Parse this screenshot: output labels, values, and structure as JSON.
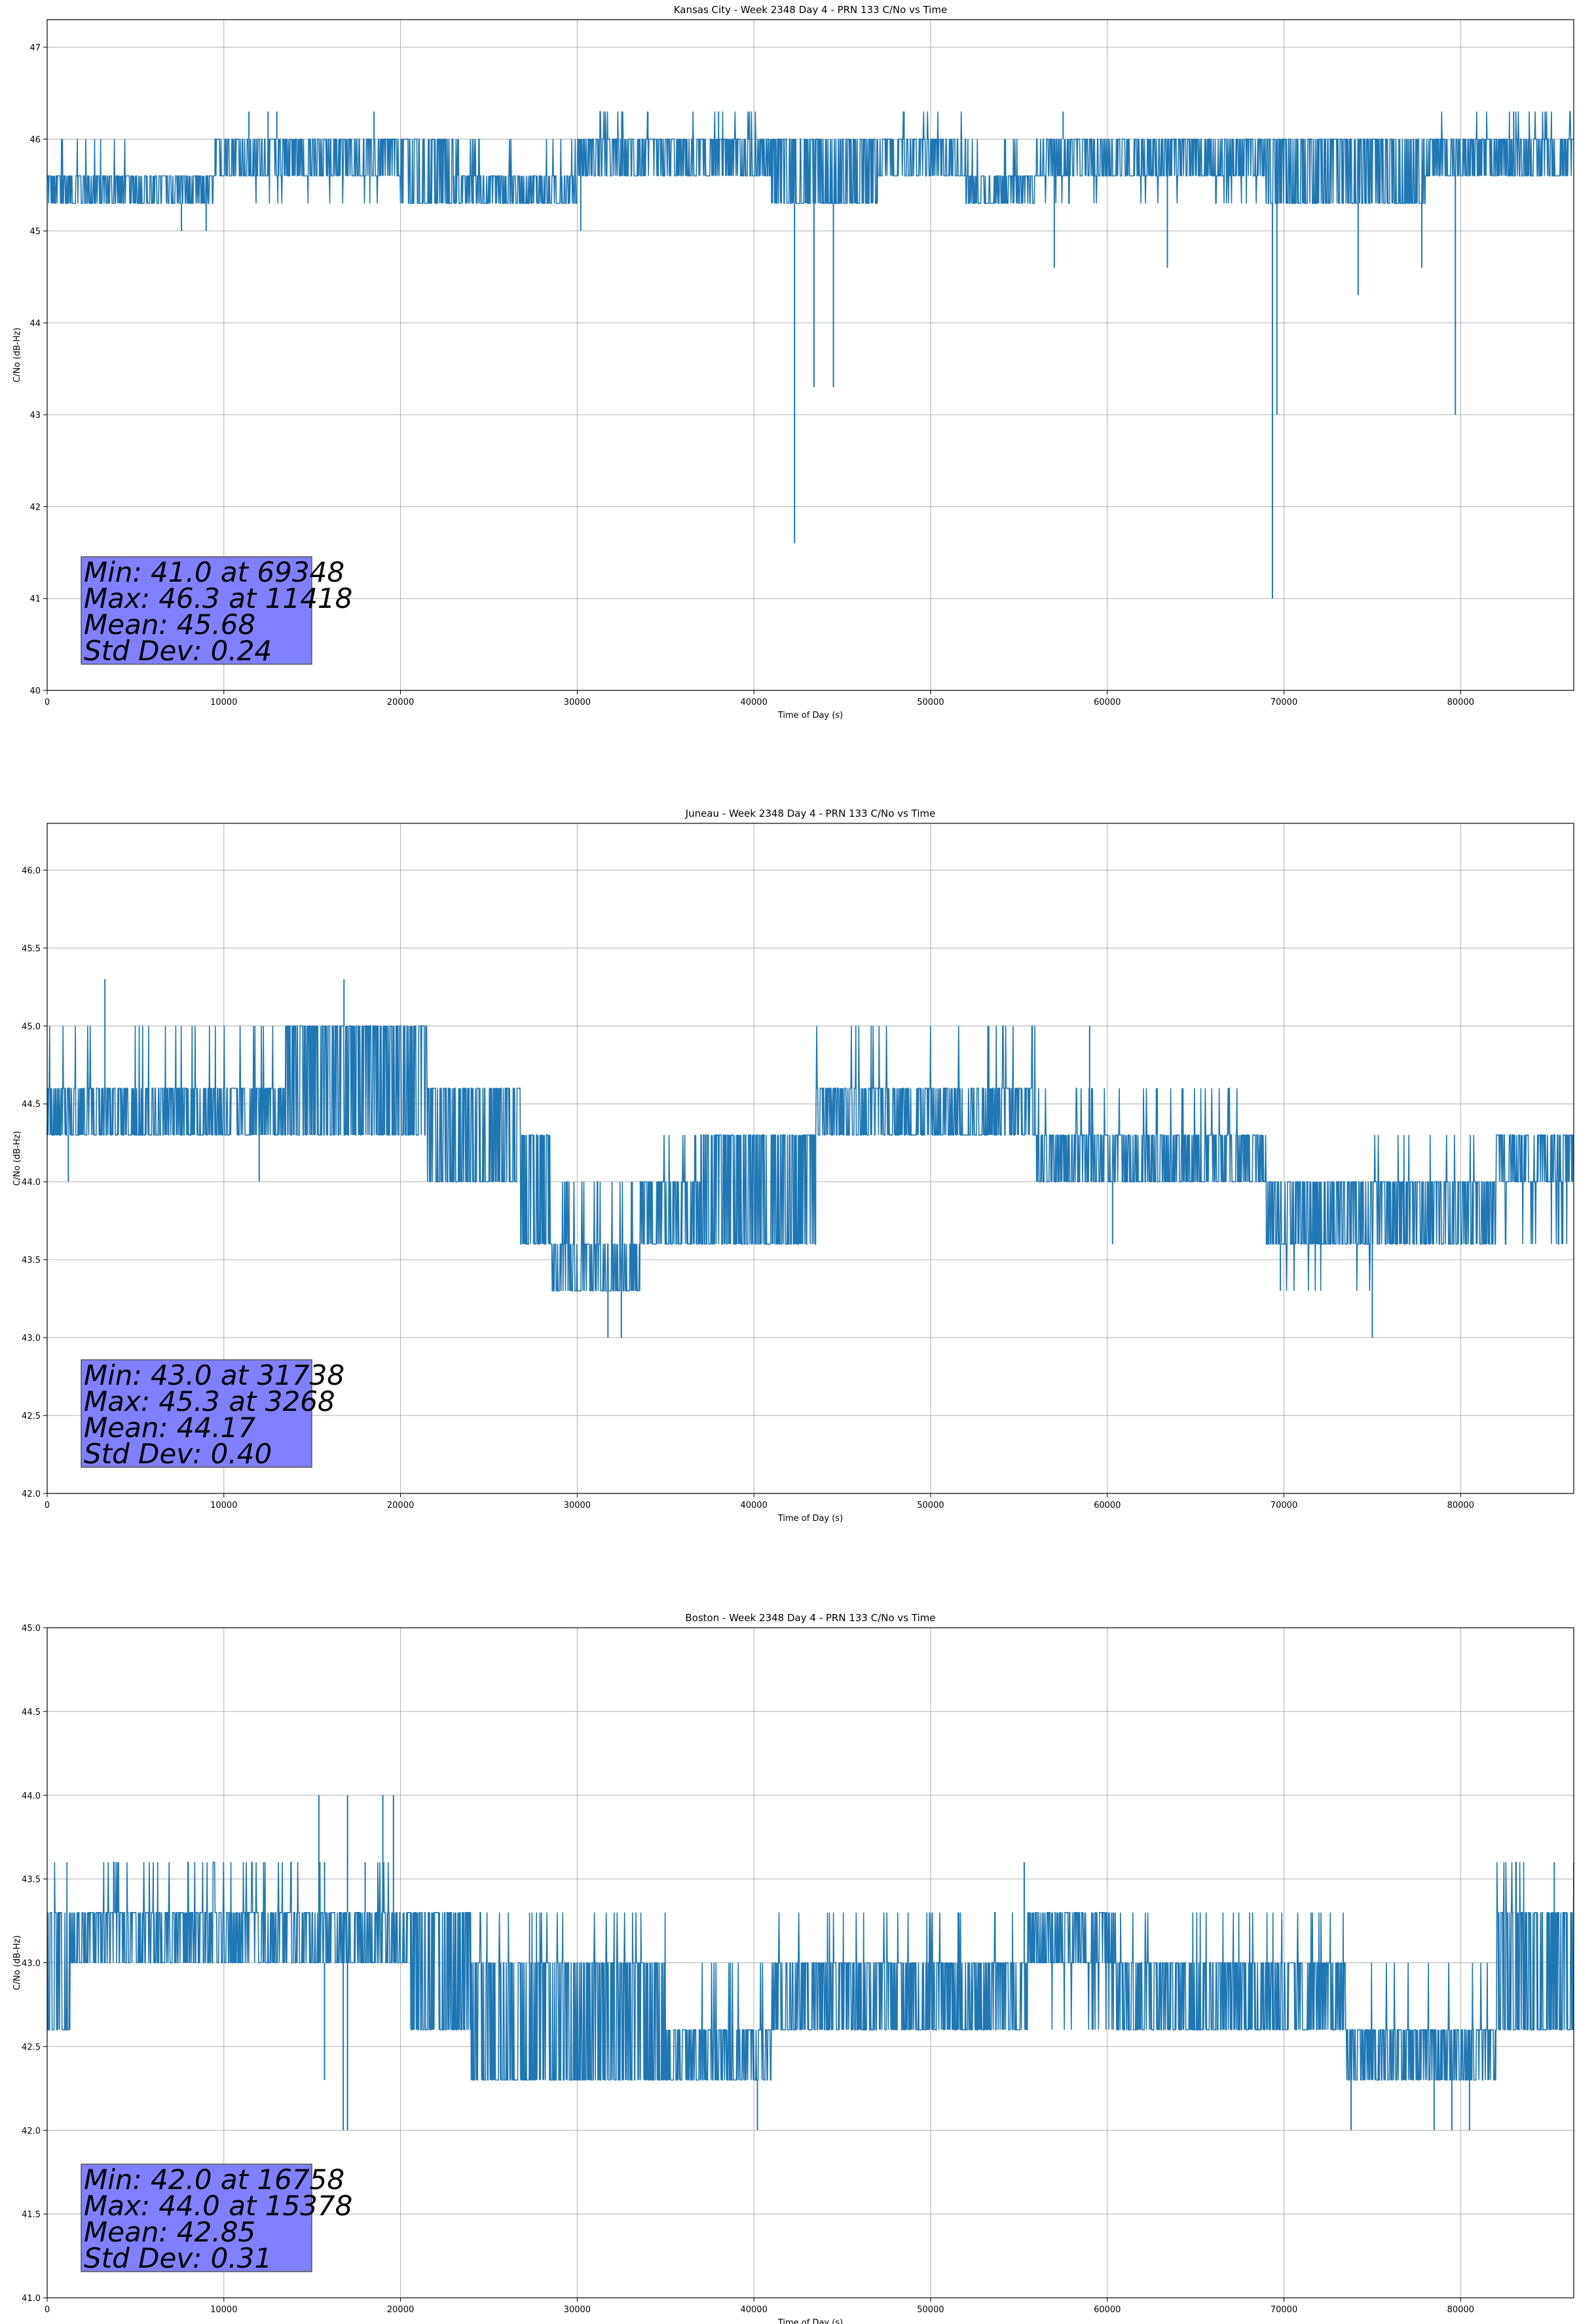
{
  "colors": {
    "series": "#1f77b4",
    "grid": "#b0b0b0",
    "stats_box": "#8080ff",
    "stats_box_edge": "#555555"
  },
  "chart_data": [
    {
      "type": "line",
      "title": "Kansas City - Week 2348 Day 4 - PRN 133 C/No vs Time",
      "xlabel": "Time of Day (s)",
      "ylabel": "C/No (dB-Hz)",
      "xlim": [
        0,
        86400
      ],
      "ylim": [
        40,
        47.3
      ],
      "xticks": [
        0,
        10000,
        20000,
        30000,
        40000,
        50000,
        60000,
        70000,
        80000
      ],
      "yticks": [
        40,
        41,
        42,
        43,
        44,
        45,
        46,
        47
      ],
      "ytick_labels": [
        "40",
        "41",
        "42",
        "43",
        "44",
        "45",
        "46",
        "47"
      ],
      "grid": true,
      "series": [
        {
          "values_description_segments": [
            {
              "x": [
                0,
                4900
              ],
              "band": [
                45.3,
                45.6
              ],
              "spikes_up": 46.0
            },
            {
              "x": [
                4900,
                9500
              ],
              "band": [
                45.3,
                45.6
              ],
              "spikes_up": 45.6
            },
            {
              "x": [
                9500,
                20000
              ],
              "band": [
                45.6,
                46.0
              ],
              "spikes_down": 45.3
            },
            {
              "x": [
                20000,
                23000
              ],
              "band": [
                45.3,
                46.0
              ]
            },
            {
              "x": [
                23000,
                30000
              ],
              "band": [
                45.3,
                45.6
              ],
              "spikes_up": 46.0
            },
            {
              "x": [
                30000,
                41000
              ],
              "band": [
                45.6,
                46.0
              ],
              "spikes_up": 46.3
            },
            {
              "x": [
                41000,
                47000
              ],
              "band": [
                45.3,
                46.0
              ]
            },
            {
              "x": [
                47000,
                52000
              ],
              "band": [
                45.6,
                46.0
              ],
              "spikes_up": 46.3
            },
            {
              "x": [
                52000,
                56000
              ],
              "band": [
                45.3,
                45.6
              ],
              "spikes_up": 46.0
            },
            {
              "x": [
                56000,
                69000
              ],
              "band": [
                45.6,
                46.0
              ],
              "spikes_down": 45.3
            },
            {
              "x": [
                69000,
                78000
              ],
              "band": [
                45.3,
                46.0
              ]
            },
            {
              "x": [
                78000,
                86400
              ],
              "band": [
                45.6,
                46.0
              ],
              "spikes_up": 46.3
            }
          ],
          "dips": [
            [
              7600,
              45.0
            ],
            [
              9000,
              45.0
            ],
            [
              30200,
              45.0
            ],
            [
              42300,
              41.6
            ],
            [
              43400,
              43.3
            ],
            [
              44500,
              43.3
            ],
            [
              57000,
              44.6
            ],
            [
              63400,
              44.6
            ],
            [
              69348,
              41.0
            ],
            [
              69600,
              43.0
            ],
            [
              74200,
              44.3
            ],
            [
              77800,
              44.6
            ],
            [
              79700,
              43.0
            ]
          ],
          "peaks": [
            [
              11418,
              46.3
            ],
            [
              12500,
              46.3
            ],
            [
              13000,
              46.3
            ],
            [
              18500,
              46.3
            ],
            [
              34000,
              46.3
            ],
            [
              38000,
              46.3
            ],
            [
              48500,
              46.3
            ],
            [
              57500,
              46.3
            ],
            [
              83000,
              46.3
            ]
          ]
        }
      ],
      "stats": {
        "min": "Min: 41.0 at 69348",
        "max": "Max: 46.3 at 11418",
        "mean": "Mean: 45.68",
        "std": "Std Dev: 0.24"
      }
    },
    {
      "type": "line",
      "title": "Juneau - Week 2348 Day 4 - PRN 133 C/No vs Time",
      "xlabel": "Time of Day (s)",
      "ylabel": "C/No (dB-Hz)",
      "xlim": [
        0,
        86400
      ],
      "ylim": [
        42,
        46.3
      ],
      "xticks": [
        0,
        10000,
        20000,
        30000,
        40000,
        50000,
        60000,
        70000,
        80000
      ],
      "yticks": [
        42.0,
        42.5,
        43.0,
        43.5,
        44.0,
        44.5,
        45.0,
        45.5,
        46.0
      ],
      "ytick_labels": [
        "42.0",
        "42.5",
        "43.0",
        "43.5",
        "44.0",
        "44.5",
        "45.0",
        "45.5",
        "46.0"
      ],
      "grid": true,
      "series": [
        {
          "values_description_segments": [
            {
              "x": [
                0,
                13500
              ],
              "band": [
                44.3,
                44.6
              ],
              "spikes_up": 45.0
            },
            {
              "x": [
                13500,
                21500
              ],
              "band": [
                44.3,
                45.0
              ],
              "spikes_up": 45.0
            },
            {
              "x": [
                21500,
                26800
              ],
              "band": [
                44.0,
                44.6
              ]
            },
            {
              "x": [
                26800,
                28500
              ],
              "band": [
                43.6,
                44.3
              ]
            },
            {
              "x": [
                28500,
                33600
              ],
              "band": [
                43.3,
                43.6
              ],
              "spikes_up": 44.0
            },
            {
              "x": [
                33600,
                37000
              ],
              "band": [
                43.6,
                44.0
              ],
              "spikes_up": 44.3
            },
            {
              "x": [
                37000,
                43500
              ],
              "band": [
                43.6,
                44.3
              ]
            },
            {
              "x": [
                43500,
                51000
              ],
              "band": [
                44.3,
                44.6
              ],
              "spikes_up": 45.0
            },
            {
              "x": [
                51000,
                56000
              ],
              "band": [
                44.3,
                44.6
              ],
              "spikes_up": 45.0
            },
            {
              "x": [
                56000,
                69000
              ],
              "band": [
                44.0,
                44.3
              ],
              "spikes_up": 44.6
            },
            {
              "x": [
                69000,
                75000
              ],
              "band": [
                43.6,
                44.0
              ],
              "spikes_down": 43.3
            },
            {
              "x": [
                75000,
                82000
              ],
              "band": [
                43.6,
                44.0
              ],
              "spikes_up": 44.3
            },
            {
              "x": [
                82000,
                86400
              ],
              "band": [
                44.0,
                44.3
              ],
              "spikes_down": 43.6
            }
          ],
          "dips": [
            [
              1200,
              44.0
            ],
            [
              12000,
              44.0
            ],
            [
              31738,
              43.0
            ],
            [
              32500,
              43.0
            ],
            [
              60300,
              43.6
            ],
            [
              69800,
              43.3
            ],
            [
              75000,
              43.0
            ]
          ],
          "peaks": [
            [
              3268,
              45.3
            ],
            [
              16800,
              45.3
            ],
            [
              59000,
              45.0
            ]
          ]
        }
      ],
      "stats": {
        "min": "Min: 43.0 at 31738",
        "max": "Max: 45.3 at 3268",
        "mean": "Mean: 44.17",
        "std": "Std Dev: 0.40"
      }
    },
    {
      "type": "line",
      "title": "Boston - Week 2348 Day 4 - PRN 133 C/No vs Time",
      "xlabel": "Time of Day (s)",
      "ylabel": "C/No (dB-Hz)",
      "xlim": [
        0,
        86400
      ],
      "ylim": [
        41,
        45
      ],
      "xticks": [
        0,
        10000,
        20000,
        30000,
        40000,
        50000,
        60000,
        70000,
        80000
      ],
      "yticks": [
        41.0,
        41.5,
        42.0,
        42.5,
        43.0,
        43.5,
        44.0,
        44.5,
        45.0
      ],
      "ytick_labels": [
        "41.0",
        "41.5",
        "42.0",
        "42.5",
        "43.0",
        "43.5",
        "44.0",
        "44.5",
        "45.0"
      ],
      "grid": true,
      "series": [
        {
          "values_description_segments": [
            {
              "x": [
                0,
                1300
              ],
              "band": [
                42.6,
                43.3
              ],
              "spikes_up": 43.6
            },
            {
              "x": [
                1300,
                20500
              ],
              "band": [
                43.0,
                43.3
              ],
              "spikes_up": 43.6
            },
            {
              "x": [
                20500,
                24000
              ],
              "band": [
                42.6,
                43.3
              ]
            },
            {
              "x": [
                24000,
                35000
              ],
              "band": [
                42.3,
                43.0
              ],
              "spikes_up": 43.3
            },
            {
              "x": [
                35000,
                41000
              ],
              "band": [
                42.3,
                42.6
              ],
              "spikes_up": 43.0
            },
            {
              "x": [
                41000,
                55500
              ],
              "band": [
                42.6,
                43.0
              ],
              "spikes_up": 43.3
            },
            {
              "x": [
                55500,
                60500
              ],
              "band": [
                43.0,
                43.3
              ],
              "spikes_down": 42.6
            },
            {
              "x": [
                60500,
                73500
              ],
              "band": [
                42.6,
                43.0
              ],
              "spikes_up": 43.3
            },
            {
              "x": [
                73500,
                82000
              ],
              "band": [
                42.3,
                42.6
              ],
              "spikes_up": 43.0
            },
            {
              "x": [
                82000,
                86400
              ],
              "band": [
                42.6,
                43.3
              ],
              "spikes_up": 43.6
            }
          ],
          "dips": [
            [
              15700,
              42.3
            ],
            [
              16758,
              42.0
            ],
            [
              17000,
              42.0
            ],
            [
              40200,
              42.0
            ],
            [
              73800,
              42.0
            ],
            [
              78500,
              42.0
            ],
            [
              79500,
              42.0
            ],
            [
              80500,
              42.0
            ]
          ],
          "peaks": [
            [
              15378,
              44.0
            ],
            [
              15700,
              43.6
            ],
            [
              17000,
              44.0
            ],
            [
              18000,
              43.6
            ],
            [
              19000,
              44.0
            ],
            [
              19600,
              44.0
            ],
            [
              55300,
              43.6
            ],
            [
              85300,
              43.6
            ]
          ]
        }
      ],
      "stats": {
        "min": "Min: 42.0 at 16758",
        "max": "Max: 44.0 at 15378",
        "mean": "Mean: 42.85",
        "std": "Std Dev: 0.31"
      }
    }
  ]
}
